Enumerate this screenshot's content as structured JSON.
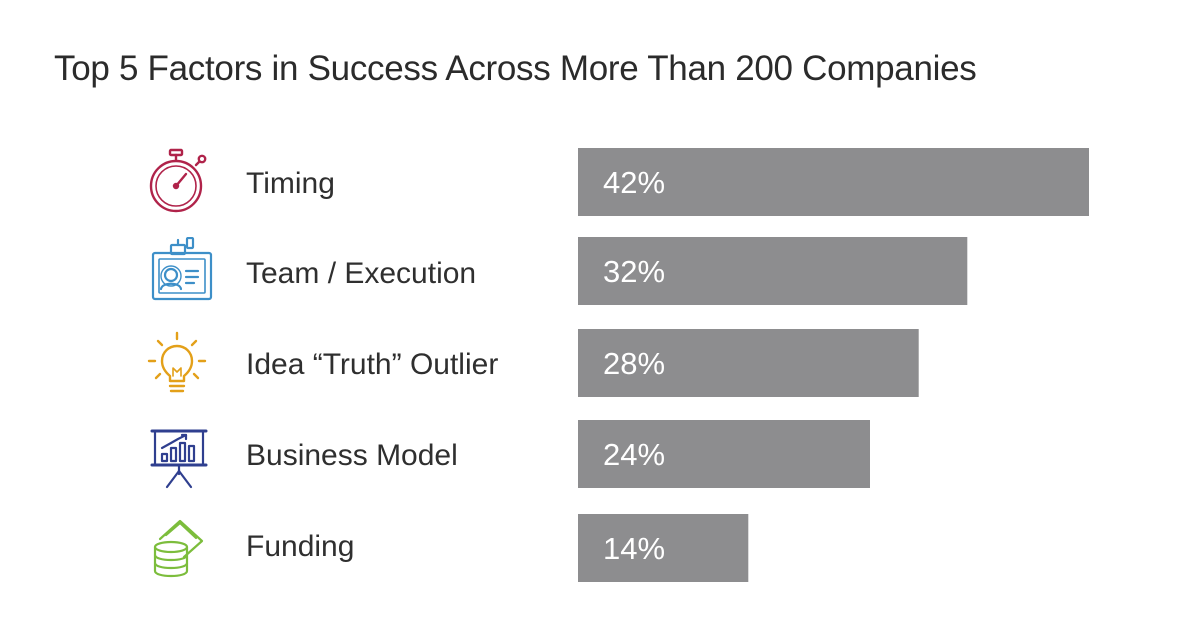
{
  "chart_data": {
    "type": "bar",
    "orientation": "horizontal",
    "title": "Top 5 Factors in Success Across More Than 200 Companies",
    "categories": [
      "Timing",
      "Team / Execution",
      "Idea “Truth” Outlier",
      "Business Model",
      "Funding"
    ],
    "values": [
      42,
      32,
      28,
      24,
      14
    ],
    "value_labels": [
      "42%",
      "32%",
      "28%",
      "24%",
      "14%"
    ],
    "icons": [
      "stopwatch-icon",
      "id-badge-icon",
      "lightbulb-icon",
      "presentation-chart-icon",
      "money-stack-icon"
    ],
    "icon_colors": [
      "#b0234a",
      "#3d8fc8",
      "#e3a019",
      "#2f3f8f",
      "#7cbd3c"
    ],
    "bar_color": "#8d8d8f",
    "label_color": "#ffffff",
    "xlabel": "",
    "ylabel": "",
    "xlim": [
      0,
      42
    ],
    "grid": false
  }
}
